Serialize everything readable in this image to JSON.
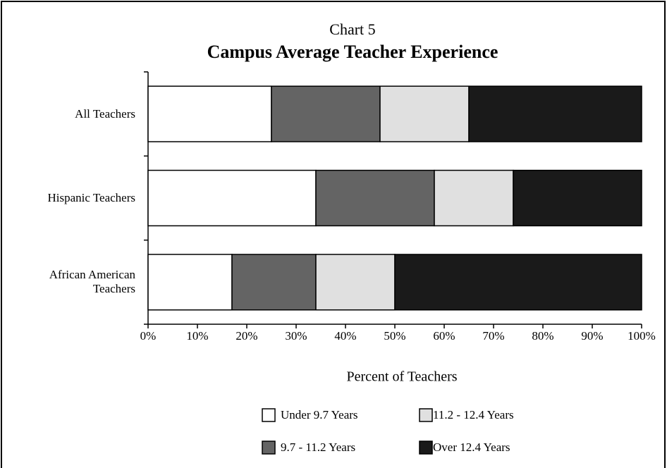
{
  "chart_data": {
    "type": "stacked_bar_horizontal",
    "supertitle": "Chart 5",
    "title": "Campus Average Teacher Experience",
    "x_label": "Percent of Teachers",
    "categories": [
      "All Teachers",
      "Hispanic Teachers",
      "African American Teachers"
    ],
    "series": [
      {
        "name": "Under 9.7 Years",
        "color": "#ffffff",
        "values": [
          25,
          34,
          17
        ]
      },
      {
        "name": "9.7 - 11.2 Years",
        "color": "#646464",
        "values": [
          22,
          24,
          17
        ]
      },
      {
        "name": "11.2 - 12.4 Years",
        "color": "#e0e0e0",
        "values": [
          18,
          16,
          16
        ]
      },
      {
        "name": "Over 12.4 Years",
        "color": "#1a1a1a",
        "values": [
          35,
          26,
          50
        ]
      }
    ],
    "xlim": [
      0,
      100
    ],
    "xticks": [
      {
        "value": 0,
        "label": "0%"
      },
      {
        "value": 10,
        "label": "10%"
      },
      {
        "value": 20,
        "label": "20%"
      },
      {
        "value": 30,
        "label": "30%"
      },
      {
        "value": 40,
        "label": "40%"
      },
      {
        "value": 50,
        "label": "50%"
      },
      {
        "value": 60,
        "label": "60%"
      },
      {
        "value": 70,
        "label": "70%"
      },
      {
        "value": 80,
        "label": "80%"
      },
      {
        "value": 90,
        "label": "90%"
      },
      {
        "value": 100,
        "label": "100%"
      }
    ],
    "legend": "bottom"
  }
}
